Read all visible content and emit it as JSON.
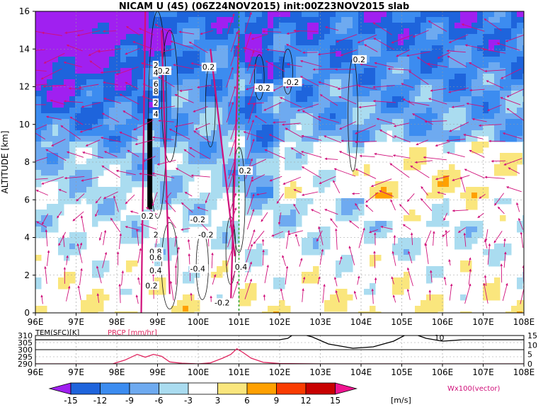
{
  "chart_data": [
    {
      "type": "heatmap",
      "title": "NICAM U (4S) (06Z24NOV2015) init:00Z23NOV2015 slab",
      "ylabel": "ALTITUDE [km]",
      "xlabel": "",
      "xlim": [
        96,
        108
      ],
      "ylim": [
        0,
        16
      ],
      "x_ticks": [
        "96E",
        "97E",
        "98E",
        "99E",
        "100E",
        "101E",
        "102E",
        "103E",
        "104E",
        "105E",
        "106E",
        "107E",
        "108E"
      ],
      "y_ticks": [
        "0",
        "2",
        "4",
        "6",
        "8",
        "10",
        "12",
        "14",
        "16"
      ],
      "grid": true,
      "marker_line_x": 101,
      "contour_labels": [
        {
          "text": "0.2",
          "x": 99.0,
          "y": 12.7
        },
        {
          "text": "0.2",
          "x": 100.1,
          "y": 12.9
        },
        {
          "text": "-0.2",
          "x": 101.4,
          "y": 11.8
        },
        {
          "text": "-0.2",
          "x": 102.1,
          "y": 12.1
        },
        {
          "text": "0.2",
          "x": 103.8,
          "y": 13.3
        },
        {
          "text": "2",
          "x": 98.9,
          "y": 13.0
        },
        {
          "text": "4",
          "x": 98.9,
          "y": 12.6
        },
        {
          "text": "6",
          "x": 98.9,
          "y": 12.0
        },
        {
          "text": "8",
          "x": 98.9,
          "y": 11.6
        },
        {
          "text": "2",
          "x": 98.9,
          "y": 11.0
        },
        {
          "text": "4",
          "x": 98.9,
          "y": 10.4
        },
        {
          "text": "0.2",
          "x": 98.6,
          "y": 5.0
        },
        {
          "text": "-0.2",
          "x": 99.8,
          "y": 4.8
        },
        {
          "text": "-0.2",
          "x": 100.0,
          "y": 4.0
        },
        {
          "text": "0.2",
          "x": 101.0,
          "y": 7.4
        },
        {
          "text": "2",
          "x": 98.9,
          "y": 4.0
        },
        {
          "text": "0.8",
          "x": 98.8,
          "y": 3.1
        },
        {
          "text": "0.6",
          "x": 98.8,
          "y": 2.8
        },
        {
          "text": "0.4",
          "x": 98.8,
          "y": 2.1
        },
        {
          "text": "0.2",
          "x": 98.7,
          "y": 1.3
        },
        {
          "text": "-0.4",
          "x": 99.8,
          "y": 2.2
        },
        {
          "text": "0.4",
          "x": 100.9,
          "y": 2.3
        },
        {
          "text": "-0.2",
          "x": 100.4,
          "y": 0.4
        }
      ],
      "colorbar": {
        "ticks": [
          "-15",
          "-12",
          "-9",
          "-6",
          "-3",
          "3",
          "6",
          "9",
          "12",
          "15"
        ],
        "unit": "[m/s]",
        "colors": [
          "#a020f0",
          "#1e64dc",
          "#3c8cf0",
          "#6eaaf0",
          "#aadcf0",
          "#ffffff",
          "#fae67d",
          "#ffa000",
          "#fa3c00",
          "#c80000",
          "#f01490"
        ]
      },
      "vector_label": "Wx100(vector)"
    },
    {
      "type": "line",
      "title": "",
      "xlim": [
        96,
        108
      ],
      "x_ticks": [
        "96E",
        "97E",
        "98E",
        "99E",
        "100E",
        "101E",
        "102E",
        "103E",
        "104E",
        "105E",
        "106E",
        "107E",
        "108E"
      ],
      "left_axis": {
        "label": "TEM(SFC)[K]",
        "ticks": [
          "290",
          "295",
          "300",
          "305",
          "310"
        ]
      },
      "right_axis": {
        "label": "PRCP [mm/hr]",
        "ticks": [
          "0",
          "5",
          "10",
          "15"
        ]
      },
      "contour_text": "10",
      "series": [
        {
          "name": "TEM(SFC)[K]",
          "color": "#000000",
          "x": [
            96,
            97,
            98,
            99,
            100,
            101,
            101.5,
            102,
            102.2,
            102.4,
            102.8,
            103.2,
            103.8,
            104.3,
            104.8,
            105.2,
            105.6,
            106,
            106.5,
            107,
            107.5,
            108
          ],
          "y": [
            307,
            307,
            307,
            307,
            307,
            307,
            307,
            307,
            308,
            312,
            309,
            304,
            301,
            302,
            306,
            312,
            308,
            306,
            307,
            307,
            307,
            307
          ]
        },
        {
          "name": "PRCP [mm/hr]",
          "color": "#e0245e",
          "x": [
            96,
            97,
            97.9,
            98.2,
            98.5,
            98.7,
            98.9,
            99.1,
            99.3,
            99.6,
            100,
            100.3,
            100.6,
            100.8,
            100.95,
            101.1,
            101.3,
            101.6,
            102,
            103,
            104,
            105,
            106,
            107,
            108
          ],
          "y": [
            0,
            0,
            0,
            2,
            5,
            3.5,
            5,
            4,
            1,
            0.3,
            0,
            0.5,
            3,
            5,
            8,
            6,
            3,
            0.8,
            0.2,
            0,
            0,
            0,
            0,
            0,
            0
          ]
        }
      ]
    }
  ]
}
